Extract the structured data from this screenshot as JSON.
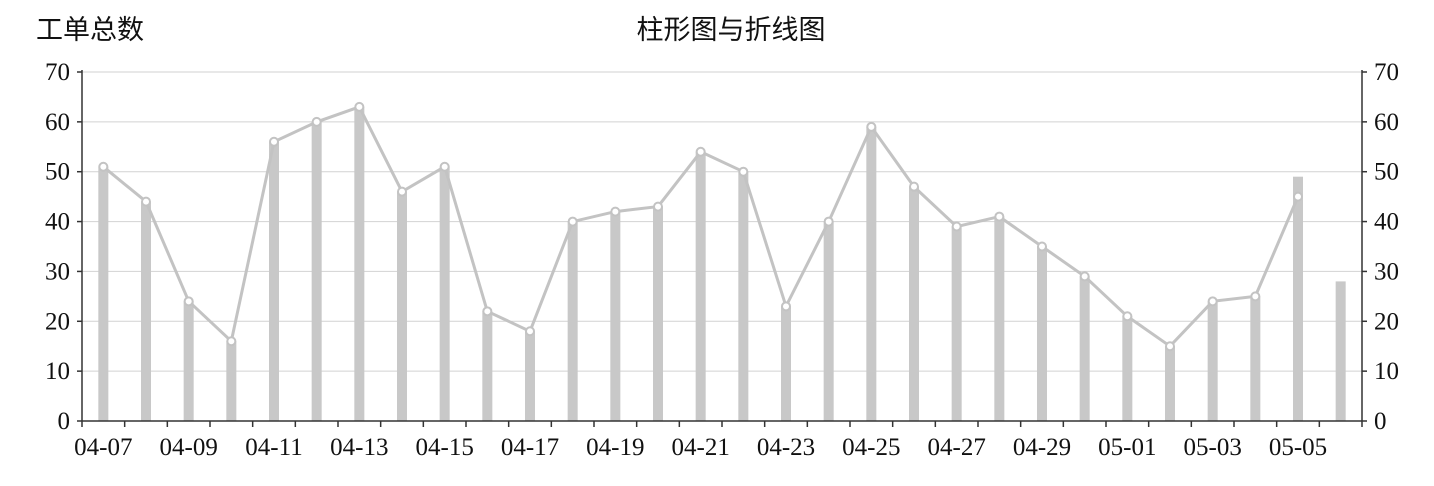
{
  "chart_data": {
    "type": "bar",
    "title": "柱形图与折线图",
    "ylabel": "工单总数",
    "ylim": [
      0,
      70
    ],
    "yticks": [
      0,
      10,
      20,
      30,
      40,
      50,
      60,
      70
    ],
    "grid": true,
    "categories": [
      "04-07",
      "04-08",
      "04-09",
      "04-10",
      "04-11",
      "04-12",
      "04-13",
      "04-14",
      "04-15",
      "04-16",
      "04-17",
      "04-18",
      "04-19",
      "04-20",
      "04-21",
      "04-22",
      "04-23",
      "04-24",
      "04-25",
      "04-26",
      "04-27",
      "04-28",
      "04-29",
      "04-30",
      "05-01",
      "05-02",
      "05-03",
      "05-04",
      "05-05",
      "05-06"
    ],
    "xtick_labels": [
      "04-07",
      "04-09",
      "04-11",
      "04-13",
      "04-15",
      "04-17",
      "04-19",
      "04-21",
      "04-23",
      "04-25",
      "04-27",
      "04-29",
      "05-01",
      "05-03",
      "05-05"
    ],
    "series": [
      {
        "type": "bar",
        "values": [
          51,
          44,
          24,
          16,
          56,
          60,
          63,
          46,
          51,
          22,
          18,
          40,
          42,
          43,
          54,
          50,
          23,
          40,
          59,
          47,
          39,
          41,
          35,
          29,
          21,
          15,
          24,
          25,
          49,
          28
        ]
      },
      {
        "type": "line",
        "values": [
          51,
          44,
          24,
          16,
          56,
          60,
          63,
          46,
          51,
          22,
          18,
          40,
          42,
          43,
          54,
          50,
          23,
          40,
          59,
          47,
          39,
          41,
          35,
          29,
          21,
          15,
          24,
          25,
          45,
          null
        ]
      }
    ],
    "colors": {
      "bar": "#c8c8c8",
      "line": "#c3c3c3",
      "grid": "#d2d2d2",
      "axis": "#333333"
    }
  }
}
